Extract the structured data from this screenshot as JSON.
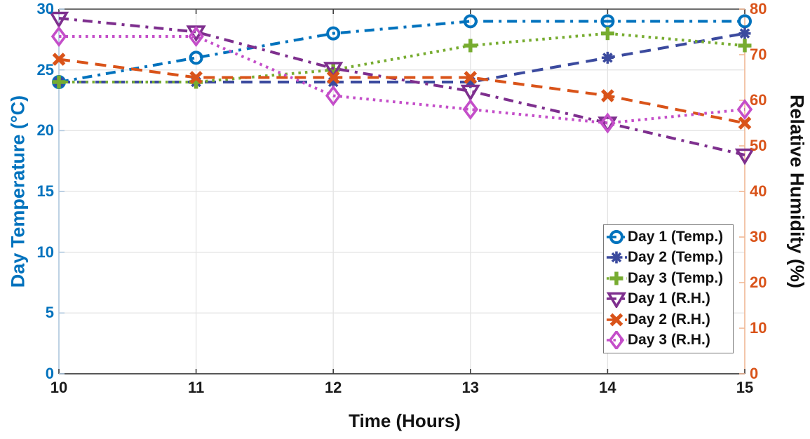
{
  "chart_data": {
    "type": "line",
    "title": "",
    "xlabel": "Time (Hours)",
    "ylabel_left": "Day Temperature (°C)",
    "ylabel_right": "Relative Humidity (%)",
    "xlim": [
      10,
      15
    ],
    "ylim_left": [
      0,
      30
    ],
    "ylim_right": [
      0,
      80
    ],
    "x": [
      10,
      11,
      12,
      13,
      14,
      15
    ],
    "x_ticks": [
      10,
      11,
      12,
      13,
      14,
      15
    ],
    "left_ticks": [
      0,
      5,
      10,
      15,
      20,
      25,
      30
    ],
    "right_ticks": [
      0,
      10,
      20,
      30,
      40,
      50,
      60,
      70,
      80
    ],
    "grid": true,
    "legend_position": "inside-lower-right",
    "series": [
      {
        "name": "Day 1 (Temp.)",
        "axis": "left",
        "color": "#0072BD",
        "linestyle": "dashdot",
        "marker": "circle",
        "values": [
          24,
          26,
          28,
          29,
          29,
          29
        ]
      },
      {
        "name": "Day 2 (Temp.)",
        "axis": "left",
        "color": "#3B4A9E",
        "linestyle": "dashed",
        "marker": "asterisk",
        "values": [
          24,
          24,
          24,
          24,
          26,
          28
        ]
      },
      {
        "name": "Day 3 (Temp.)",
        "axis": "left",
        "color": "#77AC30",
        "linestyle": "dotted",
        "marker": "plus",
        "values": [
          24,
          24,
          25,
          27,
          28,
          27
        ]
      },
      {
        "name": "Day 1 (R.H.)",
        "axis": "right",
        "color": "#7E2F8E",
        "linestyle": "dashdot",
        "marker": "triangle-down",
        "values": [
          78,
          75,
          67,
          62,
          55,
          48
        ]
      },
      {
        "name": "Day 2 (R.H.)",
        "axis": "right",
        "color": "#D95319",
        "linestyle": "dashed",
        "marker": "x",
        "values": [
          69,
          65,
          65,
          65,
          61,
          55
        ]
      },
      {
        "name": "Day 3 (R.H.)",
        "axis": "right",
        "color": "#C44EC9",
        "linestyle": "dotted",
        "marker": "diamond",
        "values": [
          74,
          74,
          61,
          58,
          55,
          58
        ]
      }
    ],
    "colors": {
      "left_tick_text": "#0072BD",
      "right_tick_text": "#D95319",
      "x_tick_text": "#1a1a1a",
      "left_axis_line": "#AEC7DE",
      "right_axis_line": "#F0B795",
      "box_line": "#3F3F3F",
      "grid_line": "#E4E4E4"
    }
  }
}
